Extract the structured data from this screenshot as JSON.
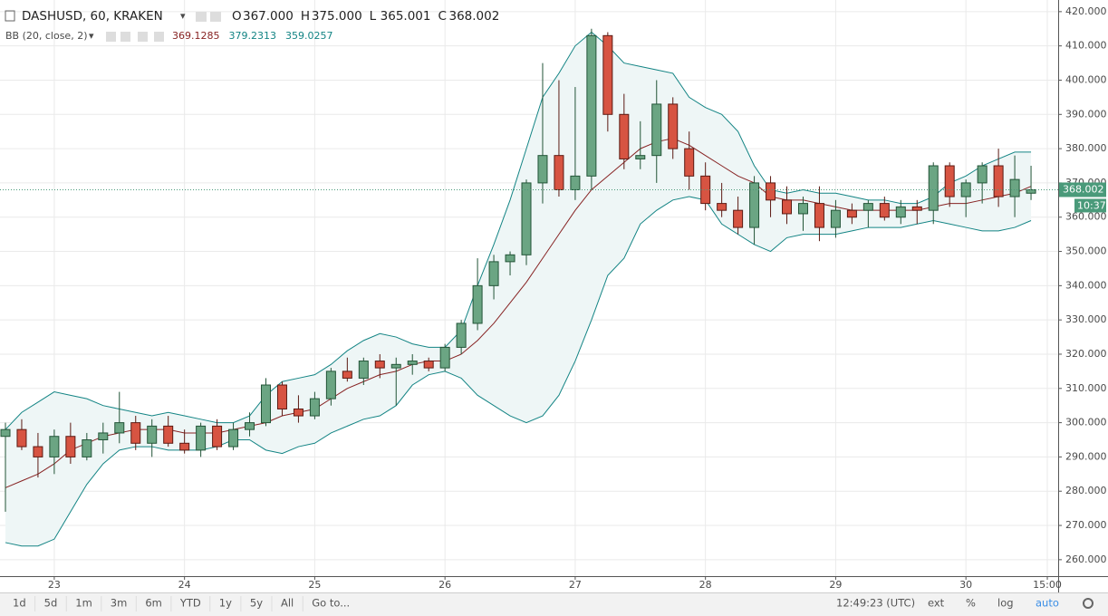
{
  "header": {
    "symbol": "DASHUSD, 60, KRAKEN",
    "ohlc": [
      {
        "label": "O",
        "value": "367.000"
      },
      {
        "label": "H",
        "value": "375.000"
      },
      {
        "label": "L",
        "value": "365.001"
      },
      {
        "label": "C",
        "value": "368.002"
      }
    ]
  },
  "toolbar": {
    "ranges": [
      "1d",
      "5d",
      "1m",
      "3m",
      "6m",
      "YTD",
      "1y",
      "5y",
      "All"
    ],
    "goto": "Go to...",
    "clock": "12:49:23 (UTC)",
    "options": [
      "ext",
      "%",
      "log",
      "auto"
    ]
  },
  "countdown": "10:37",
  "chart_data": {
    "type": "candlestick",
    "x": [
      -9,
      -6,
      -3,
      0,
      3,
      6,
      9,
      12,
      15,
      18,
      21,
      24,
      27,
      30,
      33,
      36,
      39,
      42,
      45,
      48,
      51,
      54,
      57,
      60,
      63,
      66,
      69,
      72,
      75,
      78,
      81,
      84,
      87,
      90,
      93,
      96,
      99,
      102,
      105,
      108,
      111,
      114,
      117,
      120,
      123,
      126,
      129,
      132,
      135,
      138,
      141,
      144,
      147,
      150,
      153,
      156,
      159,
      162,
      165,
      168,
      171,
      174,
      177,
      180
    ],
    "open": [
      296,
      298,
      293,
      290,
      296,
      290,
      295,
      297,
      300,
      294,
      299,
      294,
      292,
      299,
      293,
      298,
      300,
      311,
      304,
      302,
      307,
      315,
      313,
      318,
      316,
      317,
      318,
      316,
      322,
      329,
      340,
      347,
      349,
      370,
      378,
      368,
      372,
      413,
      390,
      377,
      378,
      393,
      380,
      372,
      364,
      362,
      357,
      370,
      365,
      361,
      364,
      357,
      362,
      362,
      364,
      360,
      363,
      362,
      375,
      366,
      370,
      375,
      366,
      367
    ],
    "high": [
      300,
      301,
      297,
      298,
      300,
      297,
      300,
      309,
      302,
      301,
      302,
      298,
      300,
      301,
      300,
      303,
      313,
      312,
      308,
      309,
      316,
      319,
      319,
      320,
      319,
      320,
      319,
      323,
      330,
      348,
      349,
      350,
      371,
      405,
      400,
      398,
      415,
      414,
      396,
      388,
      400,
      395,
      385,
      376,
      370,
      366,
      372,
      372,
      369,
      366,
      369,
      365,
      364,
      365,
      366,
      365,
      365,
      376,
      376,
      371,
      376,
      380,
      378,
      375
    ],
    "low": [
      274,
      292,
      284,
      285,
      288,
      289,
      291,
      294,
      292,
      290,
      293,
      291,
      290,
      292,
      292,
      296,
      299,
      302,
      300,
      301,
      305,
      312,
      311,
      313,
      305,
      314,
      315,
      315,
      320,
      327,
      336,
      343,
      346,
      364,
      366,
      365,
      368,
      385,
      374,
      374,
      370,
      377,
      368,
      362,
      360,
      355,
      352,
      360,
      358,
      356,
      353,
      354,
      358,
      357,
      359,
      358,
      358,
      358,
      363,
      360,
      364,
      363,
      360,
      365.001
    ],
    "close": [
      298,
      293,
      290,
      296,
      290,
      295,
      297,
      300,
      294,
      299,
      294,
      292,
      299,
      293,
      298,
      300,
      311,
      304,
      302,
      307,
      315,
      313,
      318,
      316,
      317,
      318,
      316,
      322,
      329,
      340,
      347,
      349,
      370,
      378,
      368,
      372,
      413,
      390,
      377,
      378,
      393,
      380,
      372,
      364,
      362,
      357,
      370,
      365,
      361,
      364,
      357,
      362,
      360,
      364,
      360,
      363,
      362,
      375,
      366,
      370,
      375,
      366,
      371,
      368.002
    ],
    "up_color": "#6ba583",
    "down_color": "#d75442",
    "indicator": "BB (20, close, 2)",
    "indicator_values": [
      369.1285,
      379.2313,
      359.0257
    ],
    "bands": [
      {
        "color": "#872323",
        "values": [
          281,
          283,
          285,
          288,
          292,
          294,
          296,
          297,
          298,
          298,
          298,
          297,
          297,
          297,
          298,
          299,
          300,
          302,
          303,
          304,
          307,
          310,
          312,
          314,
          315,
          317,
          318,
          318,
          320,
          324,
          329,
          335,
          341,
          348,
          355,
          362,
          368,
          372,
          376,
          380,
          382,
          383,
          381,
          378,
          375,
          372,
          370,
          366,
          365,
          365,
          364,
          363,
          362,
          362,
          362,
          362,
          362,
          363,
          364,
          364,
          365,
          366,
          367,
          369
        ]
      },
      {
        "color": "#138484",
        "values": [
          298,
          303,
          306,
          309,
          308,
          307,
          305,
          304,
          303,
          302,
          303,
          302,
          301,
          300,
          300,
          302,
          308,
          312,
          313,
          314,
          317,
          321,
          324,
          326,
          325,
          323,
          322,
          322,
          327,
          340,
          352,
          365,
          380,
          395,
          402,
          410,
          414,
          410,
          405,
          404,
          403,
          402,
          395,
          392,
          390,
          385,
          375,
          368,
          367,
          368,
          367,
          367,
          366,
          365,
          365,
          364,
          364,
          366,
          370,
          372,
          375,
          377,
          379,
          379
        ]
      },
      {
        "color": "#138484",
        "values": [
          265,
          264,
          264,
          266,
          274,
          282,
          288,
          292,
          293,
          293,
          292,
          292,
          292,
          293,
          295,
          295,
          292,
          291,
          293,
          294,
          297,
          299,
          301,
          302,
          305,
          311,
          314,
          315,
          313,
          308,
          305,
          302,
          300,
          302,
          308,
          318,
          330,
          343,
          348,
          358,
          362,
          365,
          366,
          365,
          358,
          355,
          352,
          350,
          354,
          355,
          355,
          355,
          356,
          357,
          357,
          357,
          358,
          359,
          358,
          357,
          356,
          356,
          357,
          359
        ]
      }
    ],
    "band_fill": "#eef6f6",
    "xlim": [
      -10,
      185
    ],
    "ylim": [
      255.2,
      423.4
    ],
    "xticks": [
      {
        "value": 0,
        "label": "23"
      },
      {
        "value": 24,
        "label": "24"
      },
      {
        "value": 48,
        "label": "25"
      },
      {
        "value": 72,
        "label": "26"
      },
      {
        "value": 96,
        "label": "27"
      },
      {
        "value": 120,
        "label": "28"
      },
      {
        "value": 144,
        "label": "29"
      },
      {
        "value": 168,
        "label": "30"
      },
      {
        "value": 183,
        "label": "15:00"
      }
    ],
    "yticks": [
      {
        "value": 260,
        "label": "260.000"
      },
      {
        "value": 270,
        "label": "270.000"
      },
      {
        "value": 280,
        "label": "280.000"
      },
      {
        "value": 290,
        "label": "290.000"
      },
      {
        "value": 300,
        "label": "300.000"
      },
      {
        "value": 310,
        "label": "310.000"
      },
      {
        "value": 320,
        "label": "320.000"
      },
      {
        "value": 330,
        "label": "330.000"
      },
      {
        "value": 340,
        "label": "340.000"
      },
      {
        "value": 350,
        "label": "350.000"
      },
      {
        "value": 360,
        "label": "360.000"
      },
      {
        "value": 370,
        "label": "370.000"
      },
      {
        "value": 380,
        "label": "380.000"
      },
      {
        "value": 390,
        "label": "390.000"
      },
      {
        "value": 400,
        "label": "400.000"
      },
      {
        "value": 410,
        "label": "410.000"
      },
      {
        "value": 420,
        "label": "420.000"
      }
    ],
    "grid": true
  }
}
